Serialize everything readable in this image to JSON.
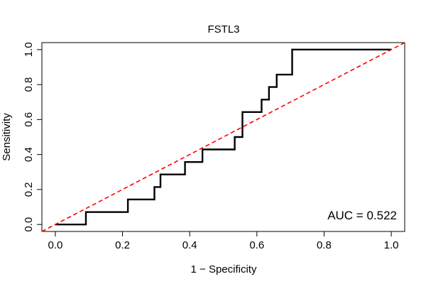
{
  "chart_data": {
    "type": "line",
    "title": "FSTL3",
    "xlabel": "1 − Specificity",
    "ylabel": "Sensitivity",
    "xlim": [
      -0.04,
      1.04
    ],
    "ylim": [
      -0.04,
      1.04
    ],
    "xticks": [
      0.0,
      0.2,
      0.4,
      0.6,
      0.8,
      1.0
    ],
    "xtick_labels": [
      "0.0",
      "0.2",
      "0.4",
      "0.6",
      "0.8",
      "1.0"
    ],
    "yticks": [
      0.0,
      0.2,
      0.4,
      0.6,
      0.8,
      1.0
    ],
    "ytick_labels": [
      "0.0",
      "0.2",
      "0.4",
      "0.6",
      "0.8",
      "1.0"
    ],
    "grid": false,
    "series": [
      {
        "style": "solid",
        "color": "#000000",
        "x": [
          0.0,
          0.091,
          0.091,
          0.216,
          0.216,
          0.295,
          0.295,
          0.313,
          0.313,
          0.386,
          0.386,
          0.438,
          0.438,
          0.534,
          0.534,
          0.557,
          0.557,
          0.614,
          0.614,
          0.636,
          0.636,
          0.659,
          0.659,
          0.705,
          0.705,
          1.0
        ],
        "y": [
          0.0,
          0.0,
          0.071,
          0.071,
          0.143,
          0.143,
          0.214,
          0.214,
          0.286,
          0.286,
          0.357,
          0.357,
          0.429,
          0.429,
          0.5,
          0.5,
          0.643,
          0.643,
          0.714,
          0.714,
          0.786,
          0.786,
          0.857,
          0.857,
          1.0,
          1.0
        ]
      },
      {
        "style": "dashed",
        "color": "#ff0000",
        "x": [
          -0.04,
          1.04
        ],
        "y": [
          -0.04,
          1.04
        ]
      }
    ],
    "annotations": [
      {
        "text": "AUC = 0.522"
      }
    ]
  }
}
